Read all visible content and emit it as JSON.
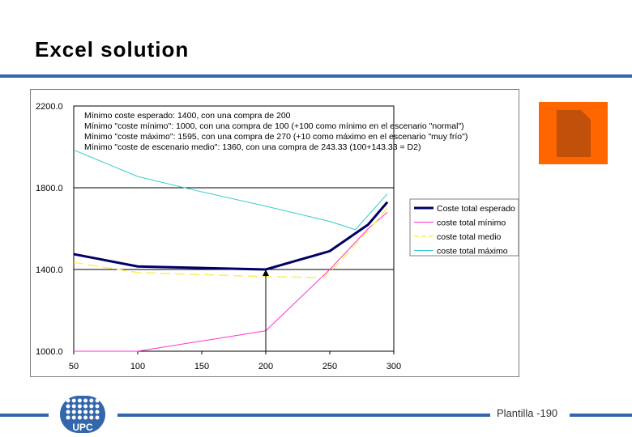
{
  "slide": {
    "title": "Excel solution",
    "page_label": "Plantilla -190",
    "logo_text": "UPC"
  },
  "colors": {
    "accent_blue": "#3366aa",
    "icon_orange": "#ff6600",
    "icon_brown": "#c0500a"
  },
  "icons": [
    "document-icon",
    "upc-logo"
  ],
  "chart_data": {
    "type": "line",
    "xlim": [
      50,
      300
    ],
    "ylim": [
      1000,
      2200
    ],
    "x_ticks": [
      "50",
      "100",
      "150",
      "200",
      "250",
      "300"
    ],
    "y_ticks": [
      "1000.0",
      "1400.0",
      "1800.0",
      "2200.0"
    ],
    "annotations": [
      "Mínimo coste esperado: 1400,  con una  compra de 200",
      "Mínimo \"coste mínimo\": 1000,  con una compra de 100  (+100 como mínimo en el escenario \"normal\")",
      "Mínimo \"coste máximo\":  1595, con una compra de 270  (+10 como máximo en el escenario \"muy frío\")",
      "Mínimo \"coste de escenario medio\": 1360, con una compra de 243.33 (100+143.33 = D2)"
    ],
    "legend_position": "right",
    "grid": true,
    "series": [
      {
        "name": "Coste total esperado",
        "color": "#000066",
        "x": [
          50,
          100,
          200,
          250,
          280,
          295
        ],
        "y": [
          1475,
          1415,
          1400,
          1490,
          1620,
          1730
        ]
      },
      {
        "name": "coste total mínimo",
        "color": "#ff33cc",
        "x": [
          50,
          100,
          200,
          250,
          280,
          295
        ],
        "y": [
          1000,
          1000,
          1100,
          1400,
          1600,
          1680
        ]
      },
      {
        "name": "coste total medio",
        "color": "#ffee55",
        "x": [
          50,
          100,
          150,
          200,
          245,
          255,
          280,
          295
        ],
        "y": [
          1435,
          1385,
          1375,
          1365,
          1360,
          1420,
          1590,
          1700
        ]
      },
      {
        "name": "coste total máximo",
        "color": "#33cccc",
        "x": [
          50,
          100,
          150,
          200,
          250,
          270,
          295
        ],
        "y": [
          1985,
          1855,
          1780,
          1710,
          1635,
          1595,
          1770
        ]
      }
    ],
    "marker": {
      "x": 200,
      "y_from": 1000,
      "y_to": 1400
    }
  }
}
